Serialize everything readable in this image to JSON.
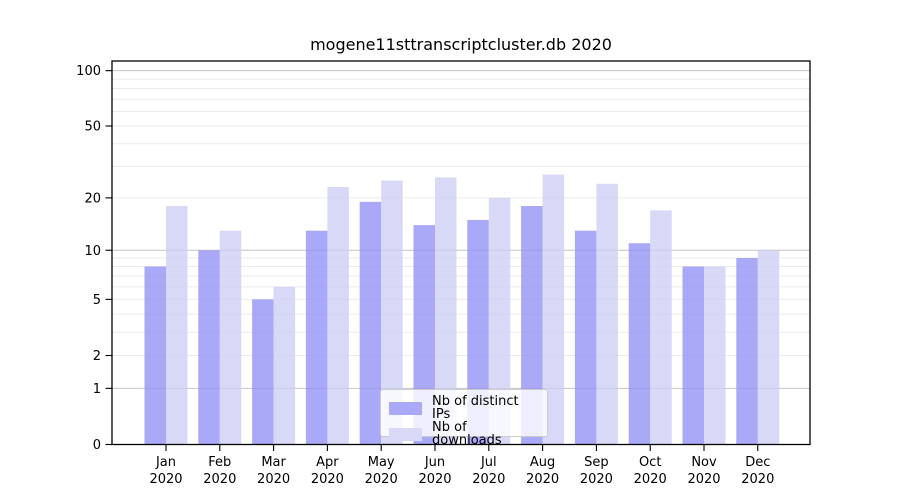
{
  "title": "mogene11sttranscriptcluster.db 2020",
  "legend": {
    "items": [
      {
        "label": "Nb of distinct IPs",
        "color": "#a9a9f7"
      },
      {
        "label": "Nb of downloads",
        "color": "#d8d8f7"
      }
    ]
  },
  "chart_data": {
    "type": "bar",
    "title": "mogene11sttranscriptcluster.db 2020",
    "categories": [
      "Jan 2020",
      "Feb 2020",
      "Mar 2020",
      "Apr 2020",
      "May 2020",
      "Jun 2020",
      "Jul 2020",
      "Aug 2020",
      "Sep 2020",
      "Oct 2020",
      "Nov 2020",
      "Dec 2020"
    ],
    "series": [
      {
        "name": "Nb of distinct IPs",
        "color": "#a9a9f7",
        "values": [
          8,
          10,
          5,
          13,
          19,
          14,
          15,
          18,
          13,
          11,
          8,
          9
        ]
      },
      {
        "name": "Nb of downloads",
        "color": "#d8d8f7",
        "values": [
          18,
          13,
          6,
          23,
          25,
          26,
          20,
          27,
          24,
          17,
          8,
          10
        ]
      }
    ],
    "xlabel": "",
    "ylabel": "",
    "yscale": "log10(1+x)",
    "ylim": [
      0,
      112.8
    ],
    "yticks": [
      0,
      1,
      2,
      5,
      10,
      20,
      50,
      100
    ],
    "minor_gridlines": [
      2,
      3,
      4,
      5,
      6,
      7,
      8,
      9,
      20,
      30,
      40,
      50,
      60,
      70,
      80,
      90
    ],
    "major_gridlines": [
      1,
      10,
      100
    ],
    "grid": "on",
    "legend_position": "lower center",
    "colors": {
      "axis": "#000000",
      "major_grid": "#c4c4c4",
      "minor_grid": "#ebebeb",
      "text": "#000000"
    }
  }
}
